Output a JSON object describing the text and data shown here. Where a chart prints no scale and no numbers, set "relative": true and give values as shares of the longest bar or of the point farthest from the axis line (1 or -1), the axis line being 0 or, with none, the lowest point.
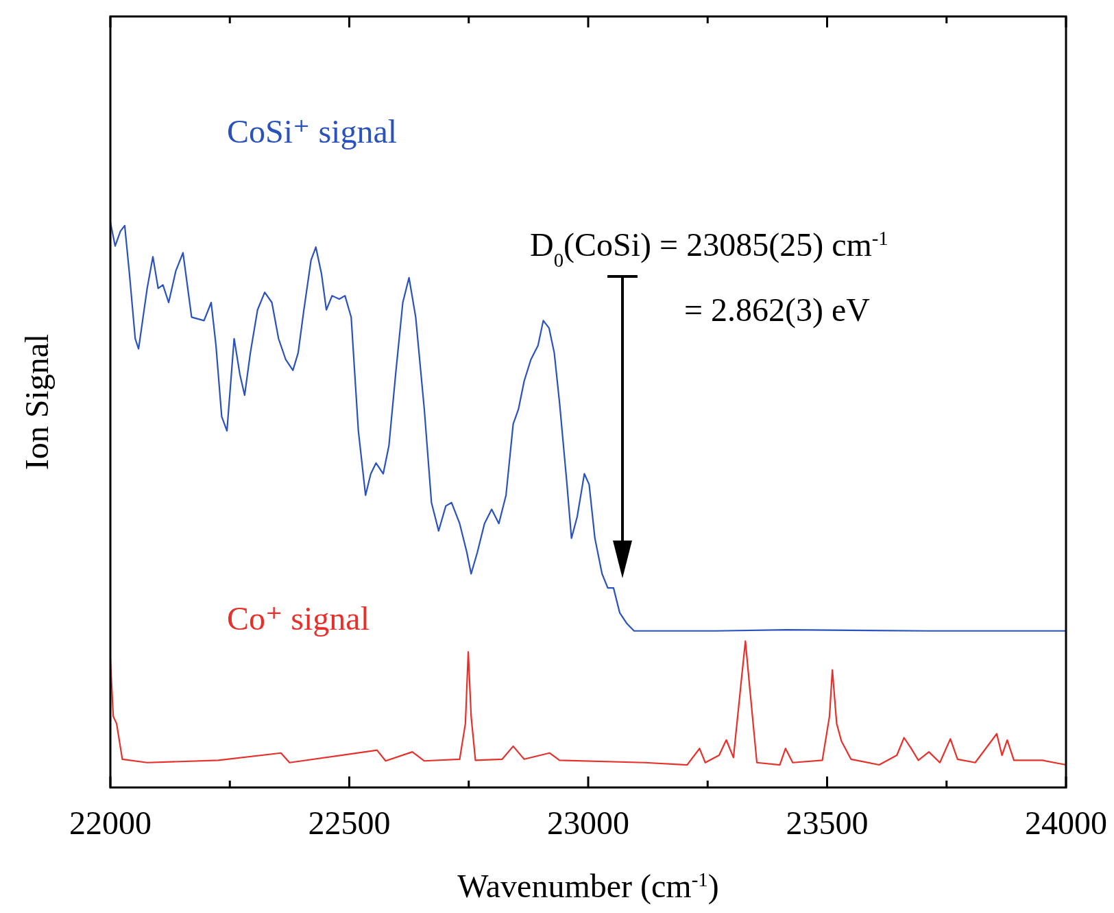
{
  "chart_data": {
    "type": "line",
    "relative": true,
    "xlabel": "Wavenumber (cm$^{-1}$)",
    "ylabel": "Ion Signal",
    "xlim": [
      22000,
      24000
    ],
    "xticks": [
      22000,
      {
        "value": 22250,
        "label": null
      },
      22500,
      {
        "value": 22750,
        "label": null
      },
      23000,
      {
        "value": 23250,
        "label": null
      },
      23500,
      {
        "value": 23750,
        "label": null
      },
      24000
    ],
    "grid": false,
    "annotations": [
      "D$_{0}$(CoSi) = 23085(25) cm$^{-1}$",
      "=  2.862(3) eV"
    ],
    "series": [
      {
        "name": "CoSi⁺ signal",
        "color": "#2a52be",
        "x": [
          22000,
          22010,
          22021,
          22030,
          22040,
          22052,
          22059,
          22077,
          22089,
          22100,
          22110,
          22122,
          22137,
          22152,
          22170,
          22196,
          22211,
          22221,
          22233,
          22244,
          22259,
          22271,
          22281,
          22293,
          22308,
          22323,
          22338,
          22352,
          22367,
          22382,
          22393,
          22405,
          22420,
          22430,
          22442,
          22452,
          22464,
          22479,
          22491,
          22504,
          22519,
          22534,
          22545,
          22556,
          22571,
          22583,
          22597,
          22612,
          22625,
          22639,
          22657,
          22672,
          22687,
          22702,
          22714,
          22731,
          22746,
          22755,
          22768,
          22783,
          22798,
          22813,
          22828,
          22843,
          22854,
          22866,
          22880,
          22895,
          22906,
          22918,
          22929,
          22940,
          22955,
          22965,
          22977,
          22992,
          23002,
          23014,
          23029,
          23041,
          23053,
          23066,
          23081,
          23096,
          23267,
          23416,
          23713,
          24000
        ],
        "values": [
          1,
          0.958,
          0.984,
          0.994,
          0.908,
          0.794,
          0.776,
          0.883,
          0.939,
          0.883,
          0.889,
          0.858,
          0.914,
          0.946,
          0.832,
          0.826,
          0.858,
          0.782,
          0.656,
          0.631,
          0.794,
          0.731,
          0.694,
          0.769,
          0.845,
          0.876,
          0.858,
          0.794,
          0.757,
          0.738,
          0.769,
          0.845,
          0.933,
          0.956,
          0.908,
          0.845,
          0.87,
          0.864,
          0.87,
          0.832,
          0.631,
          0.517,
          0.555,
          0.574,
          0.555,
          0.605,
          0.731,
          0.858,
          0.902,
          0.832,
          0.669,
          0.504,
          0.454,
          0.498,
          0.504,
          0.467,
          0.416,
          0.378,
          0.416,
          0.467,
          0.492,
          0.467,
          0.517,
          0.643,
          0.669,
          0.719,
          0.757,
          0.782,
          0.826,
          0.813,
          0.769,
          0.681,
          0.542,
          0.441,
          0.479,
          0.555,
          0.536,
          0.441,
          0.378,
          0.353,
          0.353,
          0.309,
          0.29,
          0.277,
          0.277,
          0.279,
          0.277,
          0.277
        ]
      },
      {
        "name": "Co⁺ signal",
        "color": "#e8302a",
        "x": [
          22000,
          22006,
          22013,
          22025,
          22077,
          22226,
          22357,
          22375,
          22558,
          22576,
          22632,
          22657,
          22731,
          22743,
          22749,
          22755,
          22764,
          22820,
          22843,
          22866,
          22919,
          22940,
          23118,
          23207,
          23233,
          23245,
          23274,
          23289,
          23304,
          23319,
          23329,
          23338,
          23353,
          23401,
          23413,
          23428,
          23490,
          23505,
          23511,
          23520,
          23530,
          23550,
          23609,
          23646,
          23661,
          23676,
          23691,
          23713,
          23736,
          23758,
          23773,
          23810,
          23855,
          23866,
          23877,
          23891,
          23951,
          24000
        ],
        "values": [
          0.227,
          0.126,
          0.113,
          0.05,
          0.044,
          0.048,
          0.061,
          0.044,
          0.066,
          0.047,
          0.063,
          0.047,
          0.05,
          0.113,
          0.24,
          0.126,
          0.048,
          0.05,
          0.073,
          0.05,
          0.061,
          0.048,
          0.044,
          0.04,
          0.069,
          0.044,
          0.057,
          0.084,
          0.053,
          0.177,
          0.259,
          0.177,
          0.044,
          0.04,
          0.069,
          0.044,
          0.048,
          0.126,
          0.208,
          0.113,
          0.082,
          0.05,
          0.04,
          0.057,
          0.088,
          0.069,
          0.048,
          0.063,
          0.044,
          0.086,
          0.05,
          0.044,
          0.095,
          0.057,
          0.084,
          0.048,
          0.048,
          0.04
        ]
      }
    ]
  }
}
